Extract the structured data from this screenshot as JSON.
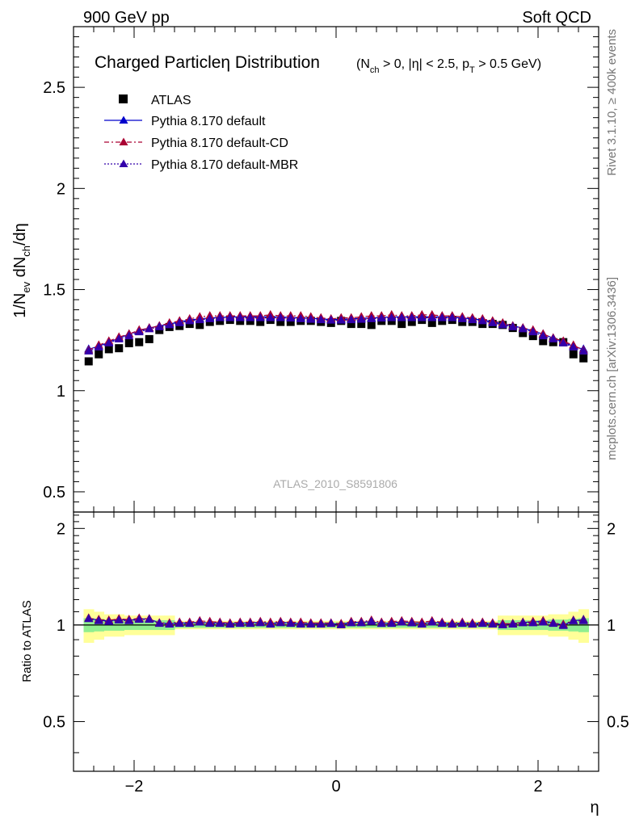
{
  "header": {
    "left": "900 GeV pp",
    "right": "Soft QCD"
  },
  "side_labels": {
    "rivet": "Rivet 3.1.10, ≥ 400k events",
    "mcplots": "mcplots.cern.ch [arXiv:1306.3436]"
  },
  "watermark": "ATLAS_2010_S8591806",
  "chart_data": [
    {
      "type": "scatter",
      "title": "Charged Particleη Distribution",
      "subtitle": "(N_ch > 0, |η| < 2.5, p_T > 0.5 GeV)",
      "xlabel": "η",
      "ylabel": "1/N_ev dN_ch/dη",
      "xlim": [
        -2.6,
        2.6
      ],
      "ylim": [
        0.4,
        2.8
      ],
      "xticks": [
        -2,
        0,
        2
      ],
      "yticks": [
        0.5,
        1,
        1.5,
        2,
        2.5
      ],
      "grid": false,
      "legend_position": "top-left",
      "legend": [
        "ATLAS",
        "Pythia 8.170 default",
        "Pythia 8.170 default-CD",
        "Pythia 8.170 default-MBR"
      ],
      "x": [
        -2.45,
        -2.35,
        -2.25,
        -2.15,
        -2.05,
        -1.95,
        -1.85,
        -1.75,
        -1.65,
        -1.55,
        -1.45,
        -1.35,
        -1.25,
        -1.15,
        -1.05,
        -0.95,
        -0.85,
        -0.75,
        -0.65,
        -0.55,
        -0.45,
        -0.35,
        -0.25,
        -0.15,
        -0.05,
        0.05,
        0.15,
        0.25,
        0.35,
        0.45,
        0.55,
        0.65,
        0.75,
        0.85,
        0.95,
        1.05,
        1.15,
        1.25,
        1.35,
        1.45,
        1.55,
        1.65,
        1.75,
        1.85,
        1.95,
        2.05,
        2.15,
        2.25,
        2.35,
        2.45
      ],
      "series": [
        {
          "name": "ATLAS",
          "marker": "square",
          "color": "#000000",
          "values": [
            1.145,
            1.18,
            1.205,
            1.21,
            1.235,
            1.24,
            1.255,
            1.3,
            1.315,
            1.32,
            1.33,
            1.325,
            1.34,
            1.345,
            1.35,
            1.345,
            1.345,
            1.34,
            1.35,
            1.34,
            1.34,
            1.345,
            1.345,
            1.34,
            1.335,
            1.345,
            1.33,
            1.33,
            1.325,
            1.345,
            1.345,
            1.33,
            1.34,
            1.35,
            1.335,
            1.345,
            1.35,
            1.34,
            1.34,
            1.33,
            1.33,
            1.325,
            1.31,
            1.285,
            1.27,
            1.245,
            1.24,
            1.24,
            1.18,
            1.16
          ]
        },
        {
          "name": "Pythia 8.170 default",
          "marker": "triangle",
          "color": "#0000cc",
          "values": [
            1.205,
            1.22,
            1.24,
            1.26,
            1.28,
            1.295,
            1.31,
            1.32,
            1.33,
            1.34,
            1.35,
            1.355,
            1.36,
            1.362,
            1.365,
            1.365,
            1.365,
            1.365,
            1.365,
            1.365,
            1.362,
            1.36,
            1.358,
            1.355,
            1.352,
            1.352,
            1.355,
            1.358,
            1.36,
            1.362,
            1.365,
            1.365,
            1.365,
            1.365,
            1.365,
            1.365,
            1.362,
            1.36,
            1.355,
            1.35,
            1.34,
            1.33,
            1.32,
            1.31,
            1.295,
            1.28,
            1.26,
            1.24,
            1.22,
            1.205
          ]
        },
        {
          "name": "Pythia 8.170 default-CD",
          "marker": "triangle",
          "color": "#aa0033",
          "values": [
            1.2,
            1.225,
            1.245,
            1.265,
            1.28,
            1.3,
            1.31,
            1.32,
            1.335,
            1.345,
            1.355,
            1.365,
            1.37,
            1.37,
            1.37,
            1.37,
            1.37,
            1.37,
            1.375,
            1.37,
            1.37,
            1.37,
            1.365,
            1.36,
            1.355,
            1.36,
            1.36,
            1.365,
            1.37,
            1.37,
            1.375,
            1.37,
            1.37,
            1.375,
            1.375,
            1.37,
            1.37,
            1.365,
            1.36,
            1.355,
            1.345,
            1.335,
            1.32,
            1.31,
            1.3,
            1.28,
            1.26,
            1.245,
            1.225,
            1.2
          ]
        },
        {
          "name": "Pythia 8.170 default-MBR",
          "marker": "triangle",
          "color": "#3300aa",
          "values": [
            1.195,
            1.215,
            1.235,
            1.255,
            1.27,
            1.29,
            1.305,
            1.315,
            1.325,
            1.335,
            1.345,
            1.35,
            1.355,
            1.36,
            1.36,
            1.36,
            1.36,
            1.36,
            1.36,
            1.36,
            1.358,
            1.355,
            1.352,
            1.35,
            1.348,
            1.348,
            1.35,
            1.352,
            1.355,
            1.358,
            1.36,
            1.36,
            1.36,
            1.36,
            1.36,
            1.36,
            1.36,
            1.355,
            1.35,
            1.345,
            1.335,
            1.325,
            1.315,
            1.305,
            1.29,
            1.27,
            1.255,
            1.235,
            1.215,
            1.195
          ]
        }
      ]
    },
    {
      "type": "scatter",
      "title": "",
      "xlabel": "η",
      "ylabel": "Ratio to ATLAS",
      "xlim": [
        -2.6,
        2.6
      ],
      "ylim": [
        0.35,
        2.25
      ],
      "xticks": [
        -2,
        0,
        2
      ],
      "xtick_labels": [
        "−2",
        "0",
        "2"
      ],
      "yticks": [
        0.5,
        1,
        2
      ],
      "reference_line": 1,
      "band_colors": {
        "stat": "#90ee90",
        "total": "#ffff99"
      },
      "uncertainty_band": {
        "total_halfwidth": [
          0.12,
          0.1,
          0.08,
          0.08,
          0.07,
          0.07,
          0.07,
          0.07,
          0.07,
          0.03,
          0.03,
          0.03,
          0.03,
          0.03,
          0.03,
          0.03,
          0.03,
          0.03,
          0.03,
          0.03,
          0.03,
          0.03,
          0.03,
          0.03,
          0.03,
          0.03,
          0.03,
          0.03,
          0.03,
          0.03,
          0.03,
          0.03,
          0.03,
          0.03,
          0.03,
          0.03,
          0.03,
          0.03,
          0.03,
          0.03,
          0.03,
          0.07,
          0.07,
          0.07,
          0.07,
          0.07,
          0.08,
          0.08,
          0.1,
          0.12
        ],
        "stat_halfwidth": [
          0.05,
          0.045,
          0.04,
          0.04,
          0.035,
          0.035,
          0.035,
          0.035,
          0.035,
          0.02,
          0.02,
          0.02,
          0.02,
          0.02,
          0.02,
          0.02,
          0.02,
          0.02,
          0.02,
          0.02,
          0.02,
          0.02,
          0.02,
          0.02,
          0.02,
          0.02,
          0.02,
          0.02,
          0.02,
          0.02,
          0.02,
          0.02,
          0.02,
          0.02,
          0.02,
          0.02,
          0.02,
          0.02,
          0.02,
          0.02,
          0.02,
          0.035,
          0.035,
          0.035,
          0.035,
          0.035,
          0.04,
          0.04,
          0.045,
          0.05
        ]
      },
      "series": [
        {
          "name": "Pythia 8.170 default",
          "color": "#0000cc",
          "values": [
            1.05,
            1.035,
            1.03,
            1.04,
            1.035,
            1.045,
            1.045,
            1.015,
            1.01,
            1.015,
            1.015,
            1.02,
            1.015,
            1.015,
            1.01,
            1.015,
            1.015,
            1.02,
            1.01,
            1.02,
            1.015,
            1.01,
            1.01,
            1.01,
            1.01,
            1.005,
            1.02,
            1.02,
            1.025,
            1.01,
            1.015,
            1.025,
            1.015,
            1.01,
            1.02,
            1.015,
            1.01,
            1.015,
            1.01,
            1.015,
            1.01,
            1.005,
            1.01,
            1.02,
            1.02,
            1.03,
            1.015,
            1.0,
            1.03,
            1.04
          ]
        },
        {
          "name": "Pythia 8.170 default-CD",
          "color": "#aa0033",
          "values": [
            1.05,
            1.04,
            1.035,
            1.045,
            1.04,
            1.05,
            1.045,
            1.015,
            1.015,
            1.02,
            1.02,
            1.03,
            1.025,
            1.02,
            1.015,
            1.02,
            1.02,
            1.025,
            1.02,
            1.025,
            1.02,
            1.02,
            1.015,
            1.015,
            1.015,
            1.01,
            1.025,
            1.025,
            1.035,
            1.02,
            1.025,
            1.03,
            1.025,
            1.02,
            1.03,
            1.02,
            1.015,
            1.02,
            1.015,
            1.02,
            1.015,
            1.01,
            1.01,
            1.02,
            1.025,
            1.03,
            1.015,
            1.005,
            1.035,
            1.035
          ]
        },
        {
          "name": "Pythia 8.170 default-MBR",
          "color": "#3300aa",
          "values": [
            1.045,
            1.03,
            1.025,
            1.035,
            1.03,
            1.04,
            1.04,
            1.01,
            1.005,
            1.01,
            1.01,
            1.02,
            1.01,
            1.01,
            1.005,
            1.01,
            1.01,
            1.015,
            1.005,
            1.015,
            1.01,
            1.005,
            1.005,
            1.005,
            1.01,
            1.0,
            1.015,
            1.015,
            1.025,
            1.01,
            1.01,
            1.02,
            1.015,
            1.005,
            1.02,
            1.01,
            1.005,
            1.01,
            1.005,
            1.01,
            1.005,
            1.0,
            1.005,
            1.015,
            1.015,
            1.02,
            1.01,
            0.995,
            1.03,
            1.03
          ]
        }
      ]
    }
  ]
}
